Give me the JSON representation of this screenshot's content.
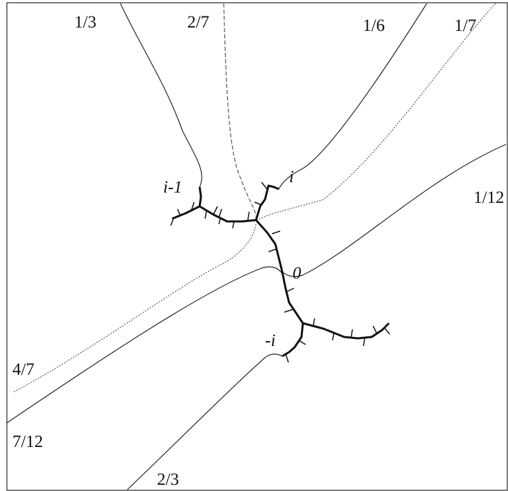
{
  "ray_labels": [
    "1/3",
    "2/7",
    "1/6",
    "1/7",
    "1/12",
    "4/7",
    "7/12",
    "2/3"
  ],
  "point_labels": [
    "i-1",
    "i",
    "0",
    "-i"
  ]
}
